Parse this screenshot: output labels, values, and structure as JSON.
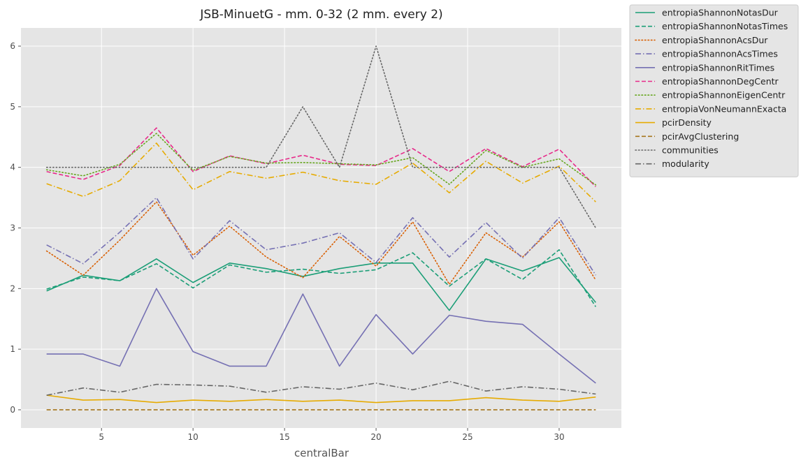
{
  "chart_data": {
    "type": "line",
    "title": "JSB-MinuetG - mm. 0-32 (2 mm. every 2)",
    "xlabel": "centralBar",
    "ylabel": "",
    "xlim": [
      0.6,
      33.4
    ],
    "ylim": [
      -0.3,
      6.3
    ],
    "xticks": [
      5,
      10,
      15,
      20,
      25,
      30
    ],
    "yticks": [
      0,
      1,
      2,
      3,
      4,
      5,
      6
    ],
    "grid": true,
    "legend_position": "outside-right",
    "x": [
      2,
      4,
      6,
      8,
      10,
      12,
      14,
      16,
      18,
      20,
      22,
      24,
      26,
      28,
      30,
      32
    ],
    "series": [
      {
        "name": "entropiaShannonNotasDur",
        "color": "#1b9e77",
        "dash": "solid",
        "values": [
          1.96,
          2.22,
          2.13,
          2.49,
          2.1,
          2.42,
          2.33,
          2.2,
          2.33,
          2.42,
          2.42,
          1.64,
          2.49,
          2.29,
          2.51,
          1.77
        ]
      },
      {
        "name": "entropiaShannonNotasTimes",
        "color": "#1b9e77",
        "dash": "dashed",
        "values": [
          1.99,
          2.19,
          2.13,
          2.41,
          2.01,
          2.39,
          2.27,
          2.32,
          2.25,
          2.31,
          2.59,
          2.04,
          2.49,
          2.15,
          2.64,
          1.7
        ]
      },
      {
        "name": "entropiaShannonAcsDur",
        "color": "#d95f02",
        "dash": "dotted",
        "values": [
          2.62,
          2.22,
          2.8,
          3.43,
          2.55,
          3.03,
          2.52,
          2.18,
          2.86,
          2.37,
          3.1,
          2.07,
          2.92,
          2.52,
          3.1,
          2.14
        ]
      },
      {
        "name": "entropiaShannonAcsTimes",
        "color": "#7570b3",
        "dash": "dashdot",
        "values": [
          2.72,
          2.41,
          2.93,
          3.5,
          2.49,
          3.12,
          2.64,
          2.75,
          2.92,
          2.43,
          3.17,
          2.52,
          3.09,
          2.5,
          3.17,
          2.22
        ]
      },
      {
        "name": "entropiaShannonRitTimes",
        "color": "#7570b3",
        "dash": "solid",
        "values": [
          0.92,
          0.92,
          0.72,
          2.0,
          0.96,
          0.72,
          0.72,
          1.91,
          0.72,
          1.57,
          0.92,
          1.56,
          1.46,
          1.41,
          0.92,
          0.44
        ]
      },
      {
        "name": "entropiaShannonDegCentr",
        "color": "#e7298a",
        "dash": "dashed",
        "values": [
          3.93,
          3.8,
          4.03,
          4.65,
          3.93,
          4.19,
          4.06,
          4.2,
          4.05,
          4.03,
          4.31,
          3.93,
          4.31,
          4.01,
          4.3,
          3.68
        ]
      },
      {
        "name": "entropiaShannonEigenCentr",
        "color": "#66a61e",
        "dash": "dotted",
        "values": [
          3.96,
          3.86,
          4.05,
          4.56,
          3.95,
          4.18,
          4.07,
          4.08,
          4.06,
          4.04,
          4.16,
          3.72,
          4.28,
          4.0,
          4.14,
          3.71
        ]
      },
      {
        "name": "entropiaVonNeumannExacta",
        "color": "#e6ab02",
        "dash": "dashdot",
        "values": [
          3.73,
          3.52,
          3.78,
          4.4,
          3.63,
          3.93,
          3.82,
          3.92,
          3.78,
          3.72,
          4.07,
          3.58,
          4.1,
          3.74,
          4.02,
          3.43
        ]
      },
      {
        "name": "pcirDensity",
        "color": "#e6ab02",
        "dash": "solid",
        "values": [
          0.24,
          0.16,
          0.17,
          0.12,
          0.16,
          0.14,
          0.17,
          0.14,
          0.16,
          0.12,
          0.15,
          0.15,
          0.2,
          0.16,
          0.14,
          0.21
        ]
      },
      {
        "name": "pcirAvgClustering",
        "color": "#a6761d",
        "dash": "dashed",
        "values": [
          0,
          0,
          0,
          0,
          0,
          0,
          0,
          0,
          0,
          0,
          0,
          0,
          0,
          0,
          0,
          0
        ]
      },
      {
        "name": "communities",
        "color": "#666666",
        "dash": "dotted",
        "values": [
          4,
          4,
          4,
          4,
          4,
          4,
          4,
          5,
          4,
          6,
          4,
          4,
          4,
          4,
          4,
          3
        ]
      },
      {
        "name": "modularity",
        "color": "#666666",
        "dash": "dashdot",
        "values": [
          0.24,
          0.36,
          0.29,
          0.42,
          0.41,
          0.39,
          0.29,
          0.38,
          0.34,
          0.44,
          0.33,
          0.47,
          0.31,
          0.38,
          0.34,
          0.26
        ]
      }
    ]
  }
}
